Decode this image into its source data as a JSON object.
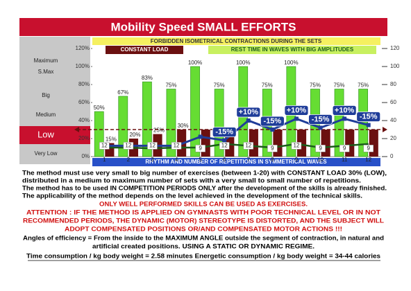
{
  "chart_data": {
    "type": "bar",
    "title": "Mobility Speed SMALL EFFORTS",
    "banner_top": "FORBIDDEN ISOMETRICAL CONTRACTIONS DURING THE SETS",
    "banner_load": "CONSTANT LOAD",
    "banner_rest": "REST TIME IN WAVES WITH BIG AMPLITUDES",
    "banner_bottom": "RHYTHM AND NUMBER OF REPETITIONS IN SYMMETRICAL WAVES",
    "levels": [
      "Maximum",
      "S.Max",
      "Big",
      "Medium",
      "Low",
      "Very Low"
    ],
    "highlight_level": 4,
    "categories": [
      "1",
      "2",
      "3",
      "4",
      "5",
      "6",
      "7",
      "8",
      "9",
      "10",
      "11",
      "12"
    ],
    "ylim": [
      0,
      120
    ],
    "yticks": [
      {
        "value": 0,
        "label": "0%"
      },
      {
        "value": 20,
        "label": "20%"
      },
      {
        "value": 40,
        "label": "40%"
      },
      {
        "value": 60,
        "label": "60%"
      },
      {
        "value": 80,
        "label": "80%"
      },
      {
        "value": 100,
        "label": "100%"
      },
      {
        "value": 120,
        "label": "120%"
      }
    ],
    "y2lim": [
      0,
      120
    ],
    "y2ticks": [
      0,
      20,
      40,
      60,
      80,
      100,
      120
    ],
    "reference_line": 30,
    "series": [
      {
        "color": "#66dd33",
        "values": [
          50,
          67,
          83,
          75,
          100,
          75,
          100,
          75,
          100,
          75,
          75,
          75
        ],
        "value_labels": [
          "50%",
          "67%",
          "83%",
          "75%",
          "100%",
          "75%",
          "100%",
          "75%",
          "100%",
          "75%",
          "75%",
          "75%"
        ]
      },
      {
        "color": "#6b1010",
        "values": [
          15,
          20,
          25,
          30,
          30,
          30,
          30,
          30,
          30,
          30,
          30,
          30
        ],
        "value_labels": [
          "15%",
          "20%",
          "25%",
          "30%",
          null,
          null,
          null,
          null,
          null,
          null,
          null,
          null
        ]
      },
      {
        "color": "#1f3d99",
        "axis": "y2",
        "values": [
          12,
          12,
          12,
          12,
          22,
          18,
          40,
          30,
          42,
          32,
          42,
          35
        ],
        "value_labels": [
          null,
          null,
          null,
          null,
          null,
          "-15%",
          "+10%",
          "-15%",
          "+10%",
          "-15%",
          "+10%",
          "-15%"
        ]
      },
      {
        "color": "#1a5c1a",
        "axis": "y2",
        "values": [
          10,
          10,
          9,
          10,
          10,
          14,
          12,
          10,
          14,
          10,
          12,
          14
        ]
      },
      {
        "color": "#ffffff",
        "axis": "y2",
        "values": [
          12,
          12,
          12,
          12,
          9,
          12,
          12,
          9,
          12,
          9,
          9,
          9
        ]
      }
    ]
  },
  "notes": [
    "The method must use very small to big number of exercises (between 1-20) with CONSTANT LOAD 30% (LOW),",
    "distributed in a medium to maximum number of sets with a very small to small number of repetitions.",
    "The method has to be used IN COMPETITION PERIODS ONLY after the development of the skills is already finished.",
    "The applicability of the method depends on the level achieved in the development of the technical skills.",
    "ONLY WELL PERFORMED SKILLS CAN BE USED AS EXERCISES.",
    "ATTENTION : IF THE METHOD IS APPLIED ON GYMNASTS WITH POOR TECHNICAL LEVEL OR IN NOT",
    "RECOMMENDED PERIODS, THE DYNAMIC (MOTOR) STEREOTYPE IS DISTORTED, AND THE SUBJECT WILL",
    "ADOPT COMPENSATED POSITIONS OR/AND COMPENSATED MOTOR ACTIONS !!!",
    "Angles of efficiency = From the inside to the MAXIMUM ANGLE outside the segment of contraction, in natural and",
    "artificial created positions. USING A STATIC OR DYNAMIC REGIME.",
    "Time consumption /  kg body weight =  2.58   minutes  Energetic consumption /  kg body weight =    34-44  calories"
  ]
}
